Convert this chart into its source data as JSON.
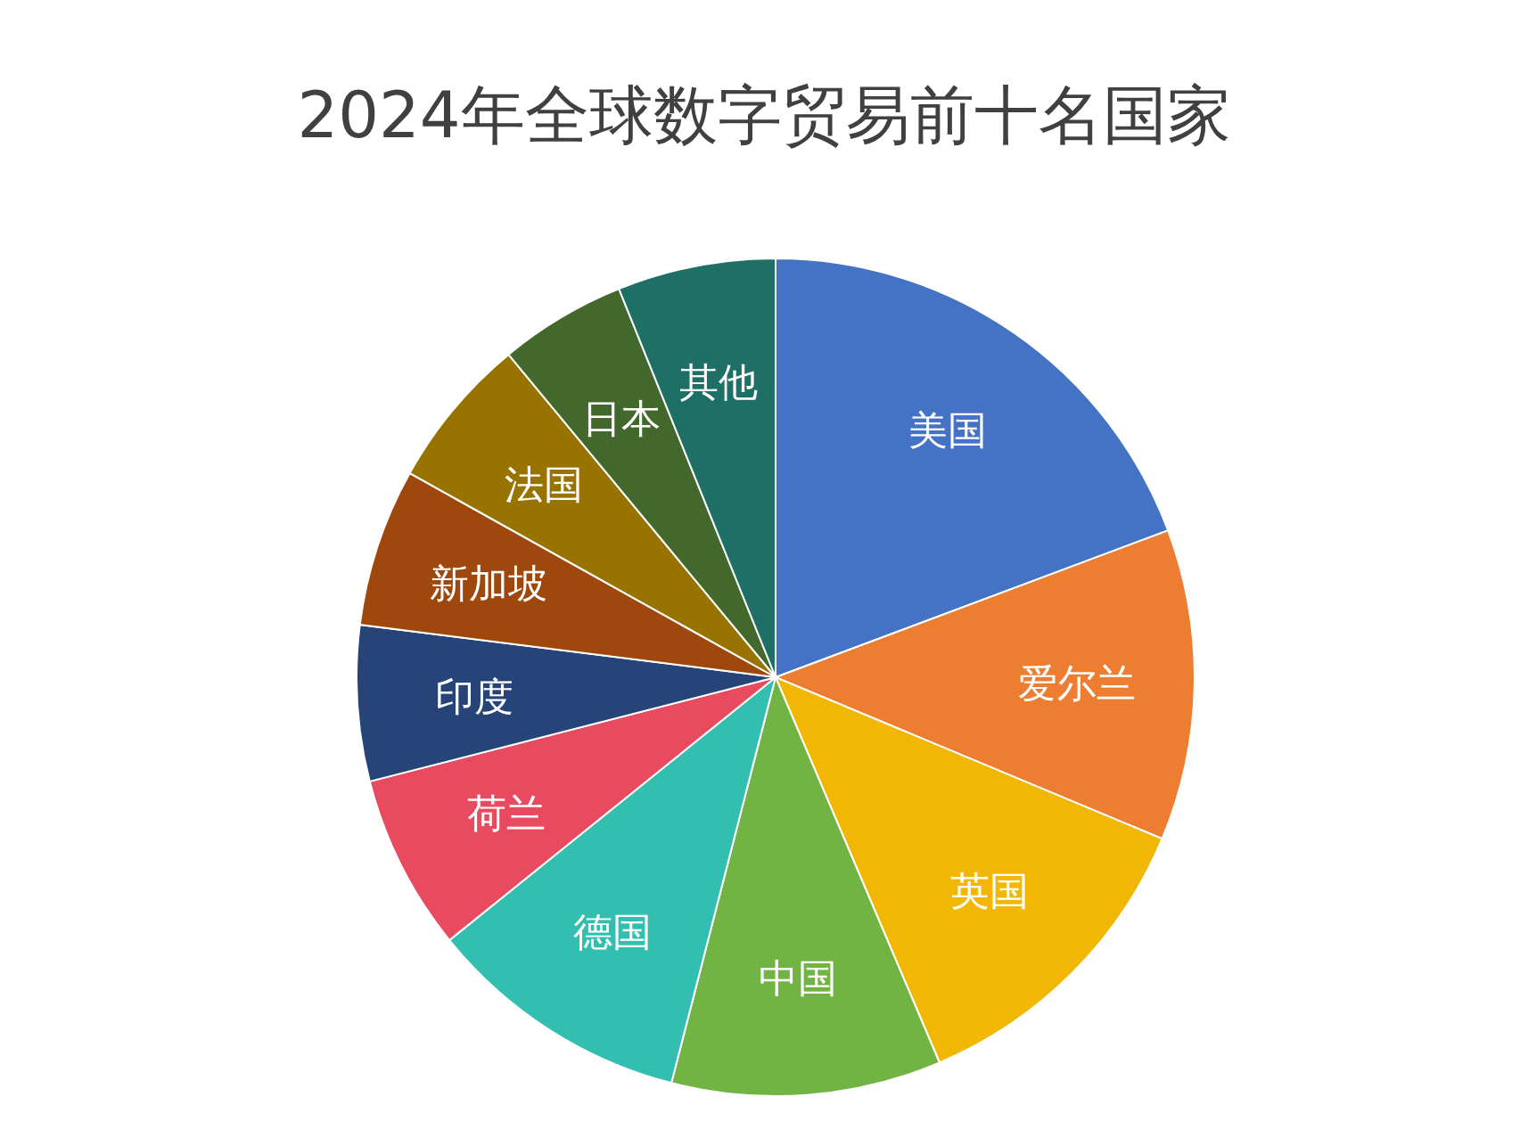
{
  "chart_data": {
    "type": "pie",
    "title": "2024年全球数字贸易前十名国家",
    "categories": [
      "美国",
      "爱尔兰",
      "英国",
      "中国",
      "德国",
      "荷兰",
      "印度",
      "新加坡",
      "法国",
      "日本",
      "其他"
    ],
    "values": [
      19.3,
      12,
      12.3,
      10.4,
      10.2,
      6.8,
      6,
      6.1,
      5.9,
      4.9,
      6.1
    ],
    "colors": [
      "#4472c4",
      "#ed7d31",
      "#f2b705",
      "#72b443",
      "#33bfb0",
      "#e84a5f",
      "#264478",
      "#9e480e",
      "#997300",
      "#43682b",
      "#1e7066"
    ]
  }
}
